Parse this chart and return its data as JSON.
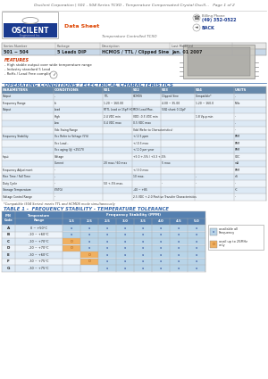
{
  "title": "Oscilent Corporation | 501 - 504 Series TCXO - Temperature Compensated Crystal Oscill...   Page 1 of 2",
  "company": "OSCILENT",
  "tagline": "Data Sheet",
  "product_line": "Temperature Controlled TCXO",
  "series_number": "501 ~ 504",
  "package": "5 Leads DIP",
  "description": "HCMOS / TTL / Clipped Sine",
  "last_modified": "Jan. 01 2007",
  "features": [
    "- High stable output over wide temperature range",
    "- Industry standard 5 Lead",
    "- RoHs / Lead Free compliant"
  ],
  "op_cond_title": "OPERATING CONDITIONS / ELECTRICAL CHARACTERISTICS",
  "op_table_headers": [
    "PARAMETERS",
    "CONDITIONS",
    "501",
    "502",
    "503",
    "504",
    "UNITS"
  ],
  "op_table_rows": [
    [
      "Output",
      "-",
      "TTL",
      "HCMOS",
      "Clipped Sine",
      "Compatible*",
      "-"
    ],
    [
      "Frequency Range",
      "fo",
      "1.20 ~ 160.00",
      "",
      "4.00 ~ 35.00",
      "1.20 ~ 160.0",
      "MHz"
    ],
    [
      "Output",
      "Load",
      "RTTL Load or 15pF HCMOS Load Max.",
      "",
      "50Ω shunt 0.12pF",
      "",
      ""
    ],
    [
      "",
      "High",
      "2.4 VDC min",
      "VDD -0.5 VDC min",
      "",
      "1.8 Vp-p min",
      "-"
    ],
    [
      "",
      "Low",
      "0.4 VDC max",
      "0.5 VDC max",
      "",
      "",
      "-"
    ],
    [
      "",
      "Vdc Swing Range",
      "",
      "Vdd (Refer to Characteristics)",
      "",
      "",
      "-"
    ],
    [
      "Frequency Stability",
      "Vcc Refer to Voltage (5%)",
      "",
      "+/-2.5 ppm",
      "",
      "",
      "PPM"
    ],
    [
      "",
      "Vcc Load -",
      "",
      "+/-0.3 max",
      "",
      "",
      "PPM"
    ],
    [
      "",
      "Vcc aging (@ +25C/Y)",
      "",
      "+/-1.0 per year",
      "",
      "",
      "PPM"
    ],
    [
      "Input",
      "Voltage",
      "",
      "+5.0 +-5% / +3.3 +-5%",
      "",
      "",
      "VDC"
    ],
    [
      "",
      "Current",
      "20 max / 60 max",
      "",
      "5 max",
      "",
      "mA"
    ],
    [
      "Frequency Adjustment",
      "-",
      "",
      "+/-3.0 max",
      "",
      "",
      "PPM"
    ],
    [
      "Rise Time / Fall Time",
      "-",
      "",
      "10 max.",
      "",
      "-",
      "nS"
    ],
    [
      "Duty Cycle",
      "-",
      "50 +-5% max.",
      "",
      "-",
      "-",
      "-"
    ],
    [
      "Storage Temperature",
      "(TSTG)",
      "",
      "-40 ~ +85",
      "",
      "",
      "°C"
    ],
    [
      "Voltage Control Range",
      "-",
      "",
      "2.5 VDC +-2.0 Positive Transfer Characteristics",
      "",
      "",
      "-"
    ]
  ],
  "footnote": "*Compatible (504 Series) meets TTL and HCMOS mode simultaneously",
  "table1_title": "TABLE 1 -  FREQUENCY STABILITY - TEMPERATURE TOLERANCE",
  "table1_freq_cols": [
    "1.5",
    "2.5",
    "2.5",
    "3.0",
    "3.5",
    "4.0",
    "4.5",
    "5.0"
  ],
  "table1_rows": [
    [
      "A",
      "0 ~ +50°C",
      "a",
      "a",
      "a",
      "a",
      "a",
      "a",
      "a",
      "a"
    ],
    [
      "B",
      "-10 ~ +60°C",
      "a",
      "a",
      "a",
      "a",
      "a",
      "a",
      "a",
      "a"
    ],
    [
      "C",
      "-10 ~ +70°C",
      "O",
      "a",
      "a",
      "a",
      "a",
      "a",
      "a",
      "a"
    ],
    [
      "D",
      "-20 ~ +70°C",
      "O",
      "a",
      "a",
      "a",
      "a",
      "a",
      "a",
      "a"
    ],
    [
      "E",
      "-30 ~ +60°C",
      "",
      "O",
      "a",
      "a",
      "a",
      "a",
      "a",
      "a"
    ],
    [
      "F",
      "-30 ~ +75°C",
      "",
      "O",
      "a",
      "a",
      "a",
      "a",
      "a",
      "a"
    ],
    [
      "G",
      "-30 ~ +75°C",
      "",
      "",
      "a",
      "a",
      "a",
      "a",
      "a",
      "a"
    ]
  ],
  "legend_a_color": "#b8d4e8",
  "legend_o_color": "#f0b060",
  "legend_a_text": "available all\nFrequency",
  "legend_o_text": "avail up to 25MHz\nonly",
  "header_blue": "#5580b0",
  "op_header_blue": "#6688aa",
  "table_row_even": "#dce9f5",
  "table_row_odd": "#eef4fa",
  "t1_row_even": "#dce9f5",
  "t1_row_odd": "#eef4fa",
  "bg_color": "#ffffff",
  "title_color": "#666666",
  "feat_title_color": "#cc3300",
  "op_title_color": "#3366aa",
  "t1_title_color": "#3366aa"
}
